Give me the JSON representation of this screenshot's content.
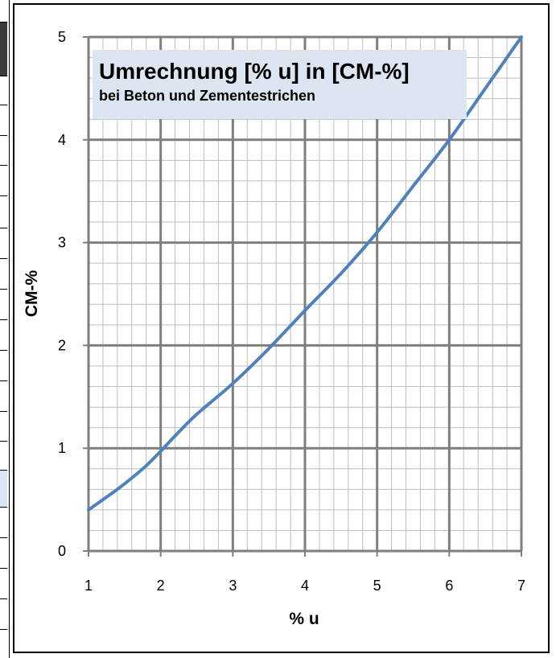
{
  "chart_data": {
    "type": "line",
    "title": "Umrechnung [% u] in [CM-%]",
    "subtitle": "bei Beton und Zementestrichen",
    "xlabel": "% u",
    "ylabel": "CM-%",
    "xlim": [
      1,
      7
    ],
    "ylim": [
      0,
      5
    ],
    "x_ticks": [
      "1",
      "2",
      "3",
      "4",
      "5",
      "6",
      "7"
    ],
    "y_ticks": [
      "0",
      "1",
      "2",
      "3",
      "4",
      "5"
    ],
    "grid": true,
    "series": [
      {
        "x": [
          1.0,
          1.2,
          1.4,
          1.6,
          1.8,
          2.0,
          2.2,
          2.5,
          3.0,
          3.5,
          4.0,
          4.5,
          5.0,
          5.5,
          6.0,
          6.5,
          7.0
        ],
        "values": [
          0.4,
          0.5,
          0.6,
          0.71,
          0.83,
          0.97,
          1.12,
          1.33,
          1.63,
          1.97,
          2.34,
          2.7,
          3.1,
          3.55,
          4.0,
          4.5,
          5.0
        ]
      }
    ],
    "colors": {
      "line": "#4f81bd",
      "title_box": "#dce6f2",
      "grid_major": "#7f7f7f",
      "grid_minor": "#bfbfbf"
    }
  }
}
